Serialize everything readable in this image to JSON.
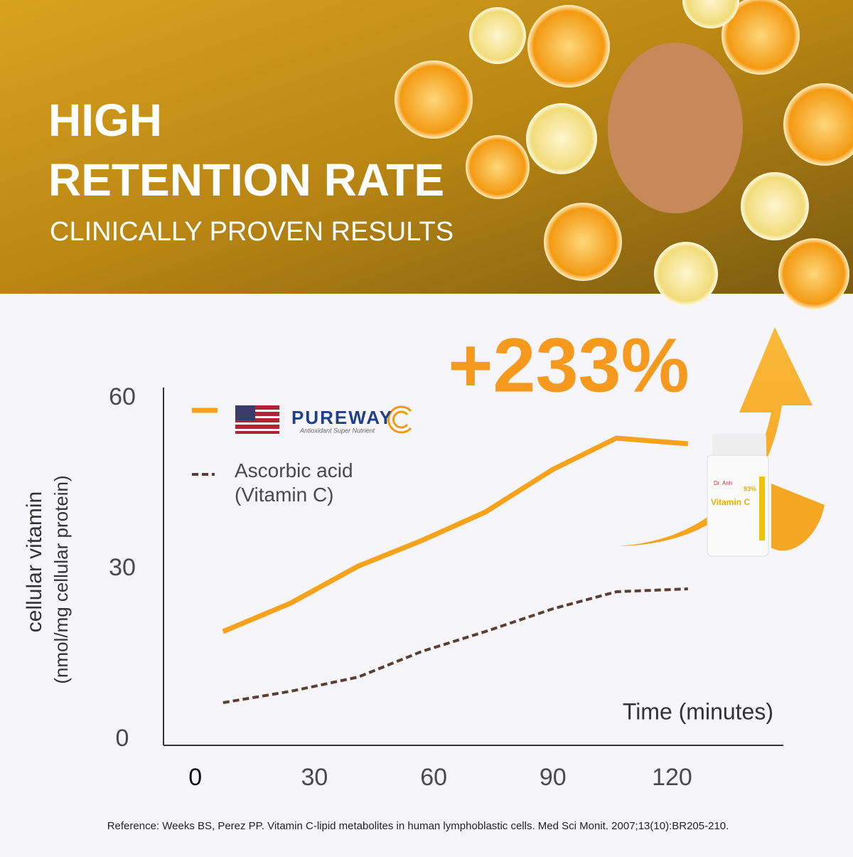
{
  "header": {
    "title_lines": [
      "HIGH",
      "RETENTION RATE"
    ],
    "subtitle": "CLINICALLY PROVEN RESULTS"
  },
  "chart_data": {
    "type": "line",
    "annotation": "+233%",
    "ylabel": "cellular vitamin",
    "ylabel_unit": "(nmol/mg cellular protein)",
    "xlabel": "Time (minutes)",
    "x": [
      7,
      24,
      41,
      57,
      73,
      90,
      106,
      124
    ],
    "xlim": [
      -8,
      148
    ],
    "xticks": [
      0,
      30,
      60,
      90,
      120
    ],
    "ylim": [
      0,
      61
    ],
    "yticks": [
      0,
      30,
      60
    ],
    "legend_tagline": "Antioxidant Super Nutrient",
    "series": [
      {
        "name": "PUREWAY",
        "color": "#f7a21b",
        "values": [
          19,
          24,
          30.5,
          35,
          40,
          47.5,
          53,
          52
        ]
      },
      {
        "name": "Ascorbic acid (Vitamin C)",
        "color": "#5a4033",
        "values": [
          6.5,
          8.5,
          11,
          15.5,
          19,
          23,
          26,
          26.5
        ]
      }
    ]
  },
  "product": {
    "brand": "Dr. Anh",
    "name": "Vitamin C",
    "badge": "93%"
  },
  "reference": "Reference: Weeks BS, Perez PP. Vitamin C-lipid metabolites in human lymphoblastic cells.  Med Sci Monit. 2007;13(10):BR205-210."
}
